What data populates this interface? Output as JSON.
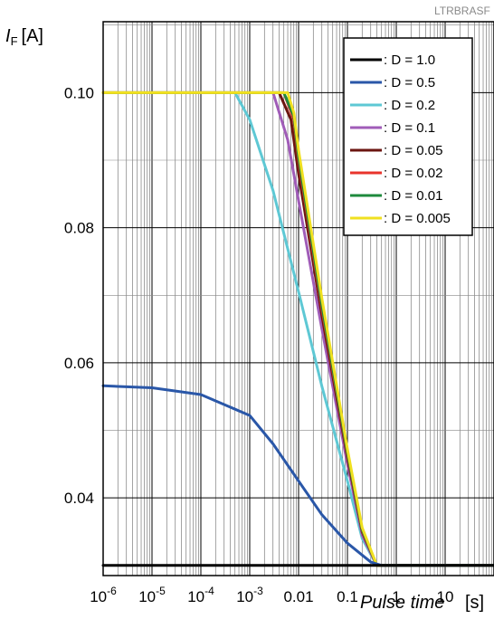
{
  "chart_data": {
    "type": "line",
    "corner_tag": "LTRBRASF",
    "ylabel_main": "I",
    "ylabel_sub": "F",
    "ylabel_unit": "[A]",
    "xlabel_main": "Pulse time",
    "xlabel_unit": "[s]",
    "x_scale": "log",
    "xlim": [
      1e-06,
      100
    ],
    "ylim": [
      0.0285,
      0.1105
    ],
    "grid": true,
    "legend_position": "top-right",
    "x_ticks": [
      {
        "value": 1e-06,
        "base": "10",
        "exp": "-6"
      },
      {
        "value": 1e-05,
        "base": "10",
        "exp": "-5"
      },
      {
        "value": 0.0001,
        "base": "10",
        "exp": "-4"
      },
      {
        "value": 0.001,
        "base": "10",
        "exp": "-3"
      },
      {
        "value": 0.01,
        "base": "0.01",
        "exp": ""
      },
      {
        "value": 0.1,
        "base": "0.1",
        "exp": ""
      },
      {
        "value": 1,
        "base": "1",
        "exp": ""
      },
      {
        "value": 10,
        "base": "10",
        "exp": ""
      }
    ],
    "y_ticks": [
      {
        "value": 0.04,
        "label": "0.04"
      },
      {
        "value": 0.06,
        "label": "0.06"
      },
      {
        "value": 0.08,
        "label": "0.08"
      },
      {
        "value": 0.1,
        "label": "0.10"
      }
    ],
    "series": [
      {
        "name": ": D = 1.0",
        "color": "#000000",
        "points": [
          [
            1e-06,
            0.03
          ],
          [
            100,
            0.03
          ]
        ]
      },
      {
        "name": ": D = 0.5",
        "color": "#2a57a8",
        "points": [
          [
            1e-06,
            0.0566
          ],
          [
            1e-05,
            0.0563
          ],
          [
            0.0001,
            0.0553
          ],
          [
            0.001,
            0.0522
          ],
          [
            0.003,
            0.048
          ],
          [
            0.01,
            0.0425
          ],
          [
            0.03,
            0.0375
          ],
          [
            0.1,
            0.0333
          ],
          [
            0.3,
            0.0305
          ],
          [
            0.5,
            0.03
          ],
          [
            100,
            0.03
          ]
        ]
      },
      {
        "name": ": D = 0.2",
        "color": "#5ec8d4",
        "points": [
          [
            0.0005,
            0.1
          ],
          [
            0.001,
            0.096
          ],
          [
            0.003,
            0.0855
          ],
          [
            0.01,
            0.0705
          ],
          [
            0.03,
            0.0565
          ],
          [
            0.1,
            0.0425
          ],
          [
            0.2,
            0.034
          ],
          [
            0.4,
            0.03
          ],
          [
            100,
            0.03
          ]
        ]
      },
      {
        "name": ": D = 0.1",
        "color": "#a05cb8",
        "points": [
          [
            0.003,
            0.1
          ],
          [
            0.006,
            0.093
          ],
          [
            0.01,
            0.084
          ],
          [
            0.03,
            0.065
          ],
          [
            0.1,
            0.045
          ],
          [
            0.2,
            0.0345
          ],
          [
            0.4,
            0.03
          ],
          [
            100,
            0.03
          ]
        ]
      },
      {
        "name": ": D = 0.05",
        "color": "#6b1510",
        "points": [
          [
            0.004,
            0.1
          ],
          [
            0.007,
            0.096
          ],
          [
            0.01,
            0.088
          ],
          [
            0.03,
            0.067
          ],
          [
            0.1,
            0.046
          ],
          [
            0.2,
            0.035
          ],
          [
            0.4,
            0.03
          ],
          [
            100,
            0.03
          ]
        ]
      },
      {
        "name": ": D = 0.02",
        "color": "#e8342c",
        "points": [
          [
            1e-06,
            0.1
          ],
          [
            0.005,
            0.1
          ],
          [
            0.008,
            0.096
          ],
          [
            0.01,
            0.09
          ],
          [
            0.03,
            0.068
          ],
          [
            0.1,
            0.0465
          ],
          [
            0.2,
            0.0352
          ],
          [
            0.4,
            0.03
          ],
          [
            100,
            0.03
          ]
        ]
      },
      {
        "name": ": D = 0.01",
        "color": "#1e8a3c",
        "points": [
          [
            1e-06,
            0.1
          ],
          [
            0.005,
            0.1
          ],
          [
            0.008,
            0.0965
          ],
          [
            0.01,
            0.0905
          ],
          [
            0.03,
            0.0685
          ],
          [
            0.1,
            0.0467
          ],
          [
            0.2,
            0.0353
          ],
          [
            0.4,
            0.03
          ],
          [
            100,
            0.03
          ]
        ]
      },
      {
        "name": ": D = 0.005",
        "color": "#f0e020",
        "points": [
          [
            1e-06,
            0.1
          ],
          [
            0.006,
            0.1
          ],
          [
            0.008,
            0.097
          ],
          [
            0.01,
            0.0915
          ],
          [
            0.03,
            0.0695
          ],
          [
            0.1,
            0.0472
          ],
          [
            0.2,
            0.0356
          ],
          [
            0.4,
            0.03
          ],
          [
            100,
            0.03
          ]
        ]
      }
    ]
  }
}
